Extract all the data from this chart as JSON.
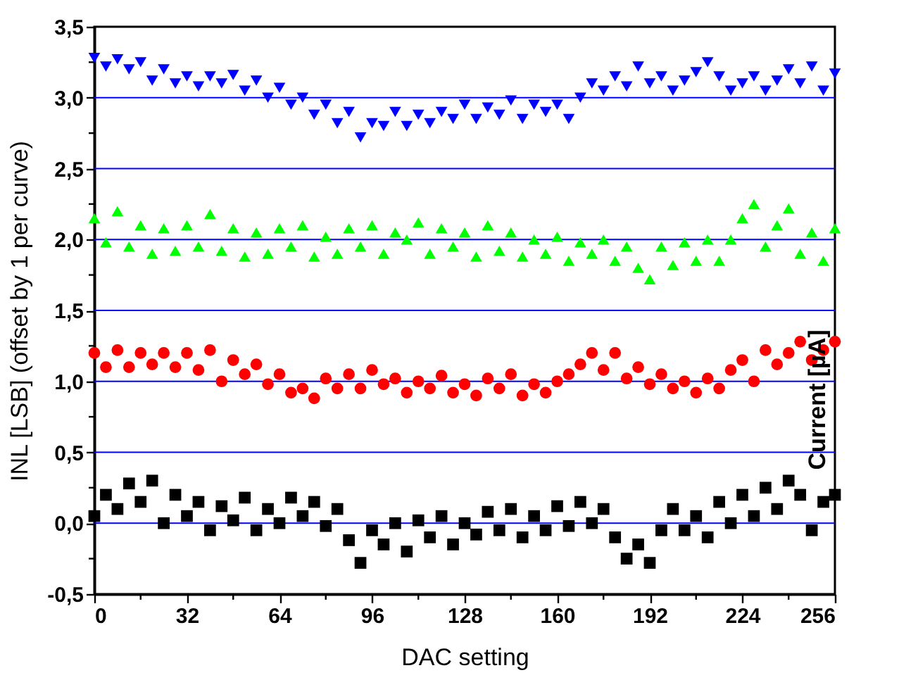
{
  "chart_data": {
    "type": "scatter",
    "xlabel": "DAC setting",
    "ylabel": "INL [LSB] (offset by 1 per curve)",
    "y2label": "Current [µA]",
    "x": [
      0,
      4,
      8,
      12,
      16,
      20,
      24,
      28,
      32,
      36,
      40,
      44,
      48,
      52,
      56,
      60,
      64,
      68,
      72,
      76,
      80,
      84,
      88,
      92,
      96,
      100,
      104,
      108,
      112,
      116,
      120,
      124,
      128,
      132,
      136,
      140,
      144,
      148,
      152,
      156,
      160,
      164,
      168,
      172,
      176,
      180,
      184,
      188,
      192,
      196,
      200,
      204,
      208,
      212,
      216,
      220,
      224,
      228,
      232,
      236,
      240,
      244,
      248,
      252,
      256
    ],
    "series": [
      {
        "color": "#000000",
        "marker": "square",
        "values": [
          0.05,
          0.2,
          0.1,
          0.28,
          0.15,
          0.3,
          0.0,
          0.2,
          0.05,
          0.15,
          -0.05,
          0.12,
          0.02,
          0.18,
          -0.05,
          0.1,
          0.0,
          0.18,
          0.05,
          0.15,
          -0.02,
          0.1,
          -0.12,
          -0.28,
          -0.05,
          -0.15,
          0.0,
          -0.2,
          0.02,
          -0.1,
          0.05,
          -0.15,
          0.0,
          -0.08,
          0.08,
          -0.05,
          0.1,
          -0.1,
          0.05,
          -0.05,
          0.12,
          -0.02,
          0.15,
          0.0,
          0.1,
          -0.1,
          -0.25,
          -0.15,
          -0.28,
          -0.05,
          0.1,
          -0.05,
          0.05,
          -0.1,
          0.15,
          0.0,
          0.2,
          0.05,
          0.25,
          0.1,
          0.3,
          0.2,
          -0.05,
          0.15,
          0.2
        ]
      },
      {
        "color": "#ff0000",
        "marker": "circle",
        "values": [
          1.2,
          1.1,
          1.22,
          1.1,
          1.2,
          1.12,
          1.2,
          1.1,
          1.2,
          1.08,
          1.22,
          1.0,
          1.15,
          1.05,
          1.12,
          0.98,
          1.05,
          0.92,
          0.95,
          0.88,
          1.02,
          0.95,
          1.05,
          0.95,
          1.08,
          0.98,
          1.02,
          0.92,
          1.0,
          0.95,
          1.04,
          0.92,
          0.98,
          0.9,
          1.02,
          0.95,
          1.05,
          0.9,
          0.98,
          0.92,
          1.0,
          1.05,
          1.12,
          1.2,
          1.08,
          1.2,
          1.02,
          1.1,
          0.98,
          1.05,
          0.95,
          1.0,
          0.92,
          1.02,
          0.95,
          1.08,
          1.15,
          1.0,
          1.22,
          1.12,
          1.2,
          1.28,
          1.15,
          1.22,
          1.28
        ]
      },
      {
        "color": "#00ff00",
        "marker": "triangle",
        "values": [
          2.15,
          1.98,
          2.2,
          1.95,
          2.1,
          1.9,
          2.08,
          1.92,
          2.1,
          1.95,
          2.18,
          1.92,
          2.08,
          1.88,
          2.05,
          1.9,
          2.08,
          1.95,
          2.1,
          1.88,
          2.02,
          1.9,
          2.08,
          1.95,
          2.1,
          1.9,
          2.05,
          2.0,
          2.12,
          1.9,
          2.08,
          1.95,
          2.05,
          1.88,
          2.1,
          1.92,
          2.05,
          1.88,
          2.0,
          1.9,
          2.02,
          1.85,
          1.98,
          1.9,
          2.0,
          1.85,
          1.95,
          1.8,
          1.72,
          1.95,
          1.82,
          1.98,
          1.85,
          2.0,
          1.85,
          2.0,
          2.15,
          2.25,
          1.95,
          2.1,
          2.22,
          1.9,
          2.05,
          1.85,
          2.08
        ]
      },
      {
        "color": "#0000ff",
        "marker": "triangle-down",
        "values": [
          3.28,
          3.22,
          3.27,
          3.2,
          3.25,
          3.12,
          3.2,
          3.1,
          3.15,
          3.08,
          3.15,
          3.1,
          3.16,
          3.05,
          3.12,
          3.0,
          3.07,
          2.95,
          3.0,
          2.88,
          2.95,
          2.82,
          2.9,
          2.72,
          2.82,
          2.8,
          2.9,
          2.8,
          2.88,
          2.82,
          2.9,
          2.85,
          2.95,
          2.85,
          2.93,
          2.88,
          2.98,
          2.85,
          2.95,
          2.9,
          2.95,
          2.85,
          3.0,
          3.1,
          3.05,
          3.15,
          3.08,
          3.22,
          3.1,
          3.15,
          3.05,
          3.12,
          3.18,
          3.25,
          3.15,
          3.05,
          3.1,
          3.15,
          3.05,
          3.12,
          3.2,
          3.1,
          3.22,
          3.05,
          3.17
        ]
      }
    ],
    "xlim": [
      0,
      256
    ],
    "xticks": [
      0,
      {
        "value": 16,
        "label": null
      },
      32,
      {
        "value": 48,
        "label": null
      },
      64,
      {
        "value": 80,
        "label": null
      },
      96,
      {
        "value": 112,
        "label": null
      },
      128,
      {
        "value": 144,
        "label": null
      },
      160,
      {
        "value": 176,
        "label": null
      },
      192,
      {
        "value": 208,
        "label": null
      },
      224,
      {
        "value": 240,
        "label": null
      },
      256
    ],
    "ylim": [
      -0.5,
      3.5
    ],
    "yticks": [
      {
        "value": -0.5,
        "label": "-0,5"
      },
      {
        "value": -0.25,
        "label": null
      },
      {
        "value": 0,
        "label": "0,0"
      },
      {
        "value": 0.25,
        "label": null
      },
      {
        "value": 0.5,
        "label": "0,5"
      },
      {
        "value": 0.75,
        "label": null
      },
      {
        "value": 1,
        "label": "1,0"
      },
      {
        "value": 1.25,
        "label": null
      },
      {
        "value": 1.5,
        "label": "1,5"
      },
      {
        "value": 1.75,
        "label": null
      },
      {
        "value": 2,
        "label": "2,0"
      },
      {
        "value": 2.25,
        "label": null
      },
      {
        "value": 2.5,
        "label": "2,5"
      },
      {
        "value": 2.75,
        "label": null
      },
      {
        "value": 3,
        "label": "3,0"
      },
      {
        "value": 3.25,
        "label": null
      },
      {
        "value": 3.5,
        "label": "3,5"
      }
    ],
    "grid": "y"
  }
}
